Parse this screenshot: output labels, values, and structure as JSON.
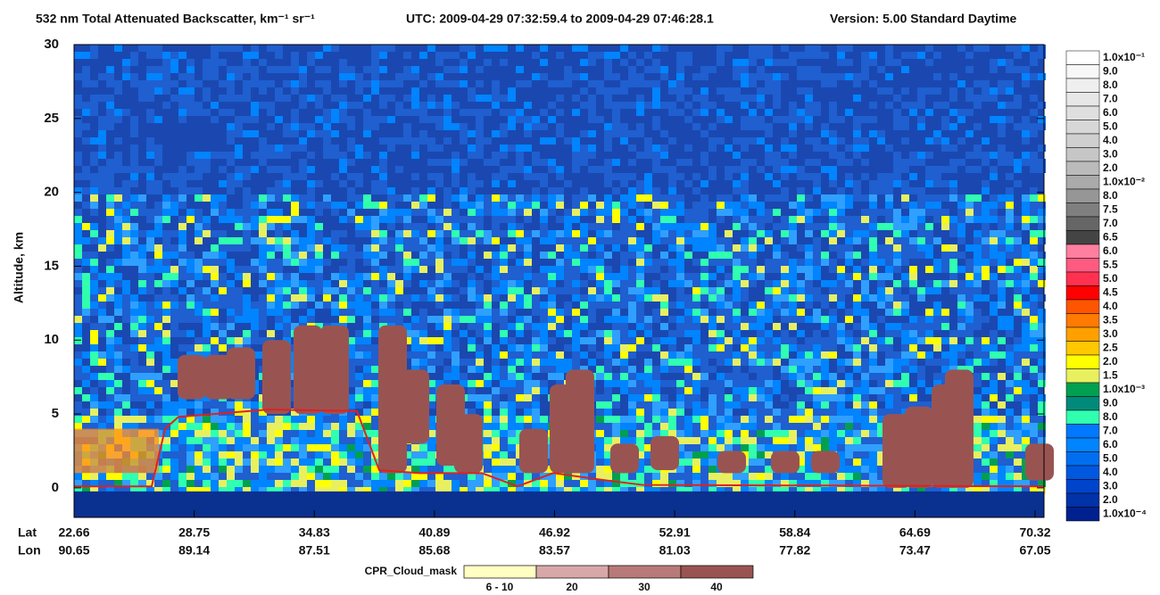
{
  "chart_data": {
    "type": "curtain",
    "title": "532 nm Total Attenuated Backscatter, km⁻¹ sr⁻¹",
    "time_range": "UTC:  2009-04-29 07:32:59.4  to  2009-04-29 07:46:28.1",
    "product": "Version: 5.00  Standard  Daytime",
    "ylabel": "Altitude, km",
    "ylim": [
      -2,
      30
    ],
    "yticks": [
      0,
      5,
      10,
      15,
      20,
      25,
      30
    ],
    "lat_label": "Lat",
    "lon_label": "Lon",
    "lat": [
      22.66,
      28.75,
      34.83,
      40.89,
      46.92,
      52.91,
      58.84,
      64.69,
      70.32
    ],
    "lon": [
      90.65,
      89.14,
      87.51,
      85.68,
      83.57,
      81.03,
      77.82,
      73.47,
      67.05
    ],
    "colorbar": [
      {
        "label": "1.0x10⁻¹",
        "color": "#ffffff"
      },
      {
        "label": "9.0",
        "color": "#f7f7f7"
      },
      {
        "label": "8.0",
        "color": "#efefef"
      },
      {
        "label": "7.0",
        "color": "#e7e7e7"
      },
      {
        "label": "6.0",
        "color": "#dfdfdf"
      },
      {
        "label": "5.0",
        "color": "#d7d7d7"
      },
      {
        "label": "4.0",
        "color": "#cfcfcf"
      },
      {
        "label": "3.0",
        "color": "#c6c6c6"
      },
      {
        "label": "2.0",
        "color": "#bbbbbb"
      },
      {
        "label": "1.0x10⁻²",
        "color": "#aaaaaa"
      },
      {
        "label": "8.0",
        "color": "#969696"
      },
      {
        "label": "7.5",
        "color": "#7f7f7f"
      },
      {
        "label": "7.0",
        "color": "#666666"
      },
      {
        "label": "6.5",
        "color": "#444444"
      },
      {
        "label": "6.0",
        "color": "#ff7fa0"
      },
      {
        "label": "5.5",
        "color": "#ff5a80"
      },
      {
        "label": "5.0",
        "color": "#ff3050"
      },
      {
        "label": "4.5",
        "color": "#ff0000"
      },
      {
        "label": "4.0",
        "color": "#ff5500"
      },
      {
        "label": "3.5",
        "color": "#ff7a00"
      },
      {
        "label": "3.0",
        "color": "#ffa000"
      },
      {
        "label": "2.5",
        "color": "#ffc800"
      },
      {
        "label": "2.0",
        "color": "#ffff00"
      },
      {
        "label": "1.5",
        "color": "#e8f060"
      },
      {
        "label": "1.0x10⁻³",
        "color": "#00a050"
      },
      {
        "label": "9.0",
        "color": "#008a7a"
      },
      {
        "label": "8.0",
        "color": "#30ffb0"
      },
      {
        "label": "7.0",
        "color": "#0078ff"
      },
      {
        "label": "6.0",
        "color": "#0084ff"
      },
      {
        "label": "5.0",
        "color": "#006ef0"
      },
      {
        "label": "4.0",
        "color": "#0058e0"
      },
      {
        "label": "3.0",
        "color": "#0044cc"
      },
      {
        "label": "2.0",
        "color": "#0032a8"
      },
      {
        "label": "1.0x10⁻⁴",
        "color": "#002090"
      }
    ],
    "cpr_legend": {
      "title": "CPR_Cloud_mask",
      "items": [
        {
          "label": "6 - 10",
          "color": "#ffffc4"
        },
        {
          "label": "20",
          "color": "#d8a8a8"
        },
        {
          "label": "30",
          "color": "#b87a78"
        },
        {
          "label": "40",
          "color": "#995452"
        }
      ]
    }
  }
}
